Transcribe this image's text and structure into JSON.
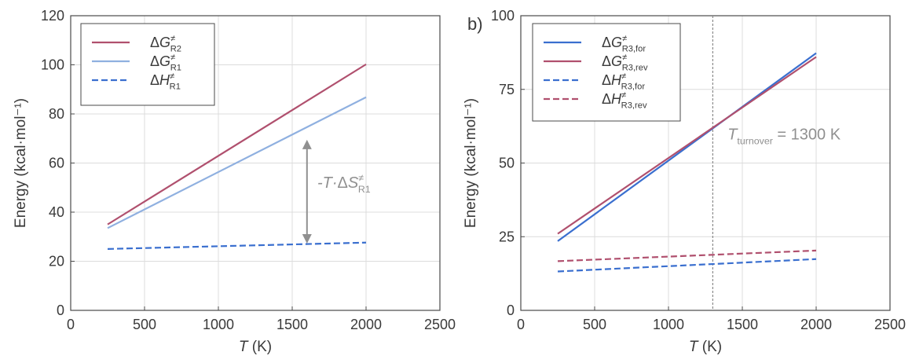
{
  "charts": {
    "left": {
      "chart_data": {
        "type": "line",
        "xlabel": {
          "main": "T",
          "unit": " (K)"
        },
        "ylabel": "Energy (kcal·mol⁻¹)",
        "xlim": [
          0,
          2500
        ],
        "ylim": [
          0,
          120
        ],
        "xticks": [
          0,
          500,
          1000,
          1500,
          2000,
          2500
        ],
        "yticks": [
          0,
          20,
          40,
          60,
          80,
          100,
          120
        ],
        "grid": true,
        "legend_position": "top-left",
        "series": [
          {
            "name": {
              "base": "ΔG",
              "sup": "≠",
              "sub": "R2"
            },
            "color": "#b0506e",
            "dash": "solid",
            "x": [
              250,
              2000
            ],
            "y": [
              35,
              100.2
            ]
          },
          {
            "name": {
              "base": "ΔG",
              "sup": "≠",
              "sub": "R1"
            },
            "color": "#8fb0e0",
            "dash": "solid",
            "x": [
              250,
              2000
            ],
            "y": [
              33.5,
              86.8
            ]
          },
          {
            "name": {
              "base": "ΔH",
              "sup": "≠",
              "sub": "R1"
            },
            "color": "#3a6fcf",
            "dash": "dashed",
            "x": [
              250,
              2000
            ],
            "y": [
              25,
              27.6
            ]
          }
        ],
        "annotations": [
          {
            "type": "double-arrow",
            "x": 1600,
            "y_from": 27.2,
            "y_to": 69.5,
            "color": "#909090"
          },
          {
            "type": "label",
            "x": 1670,
            "y": 50,
            "prefix": "-T·",
            "base": "ΔS",
            "sup": "≠",
            "sub": "R1",
            "color": "#909090"
          }
        ]
      }
    },
    "right": {
      "chart_data": {
        "type": "line",
        "panel_label": "b)",
        "xlabel": {
          "main": "T",
          "unit": " (K)"
        },
        "ylabel": "Energy (kcal·mol⁻¹)",
        "xlim": [
          0,
          2500
        ],
        "ylim": [
          0,
          100
        ],
        "xticks": [
          0,
          500,
          1000,
          1500,
          2000,
          2500
        ],
        "yticks": [
          0,
          25,
          50,
          75,
          100
        ],
        "grid": true,
        "legend_position": "top-left",
        "series": [
          {
            "name": {
              "base": "ΔG",
              "sup": "≠",
              "sub": "R3,for"
            },
            "color": "#3a6fcf",
            "dash": "solid",
            "x": [
              250,
              2000
            ],
            "y": [
              23.5,
              87.3
            ]
          },
          {
            "name": {
              "base": "ΔG",
              "sup": "≠",
              "sub": "R3,rev"
            },
            "color": "#b0506e",
            "dash": "solid",
            "x": [
              250,
              2000
            ],
            "y": [
              26,
              86
            ]
          },
          {
            "name": {
              "base": "ΔH",
              "sup": "≠",
              "sub": "R3,for"
            },
            "color": "#3a6fcf",
            "dash": "dashed",
            "x": [
              250,
              2000
            ],
            "y": [
              13.2,
              17.4
            ]
          },
          {
            "name": {
              "base": "ΔH",
              "sup": "≠",
              "sub": "R3,rev"
            },
            "color": "#b0506e",
            "dash": "dashed",
            "x": [
              250,
              2000
            ],
            "y": [
              16.7,
              20.3
            ]
          }
        ],
        "annotations": [
          {
            "type": "vline",
            "x": 1300,
            "color": "#8a8a8a"
          },
          {
            "type": "label",
            "x": 1400,
            "y": 58,
            "base": "T",
            "sub": "turnover",
            "suffix": " = 1300 K",
            "color": "#909090"
          }
        ]
      }
    }
  }
}
